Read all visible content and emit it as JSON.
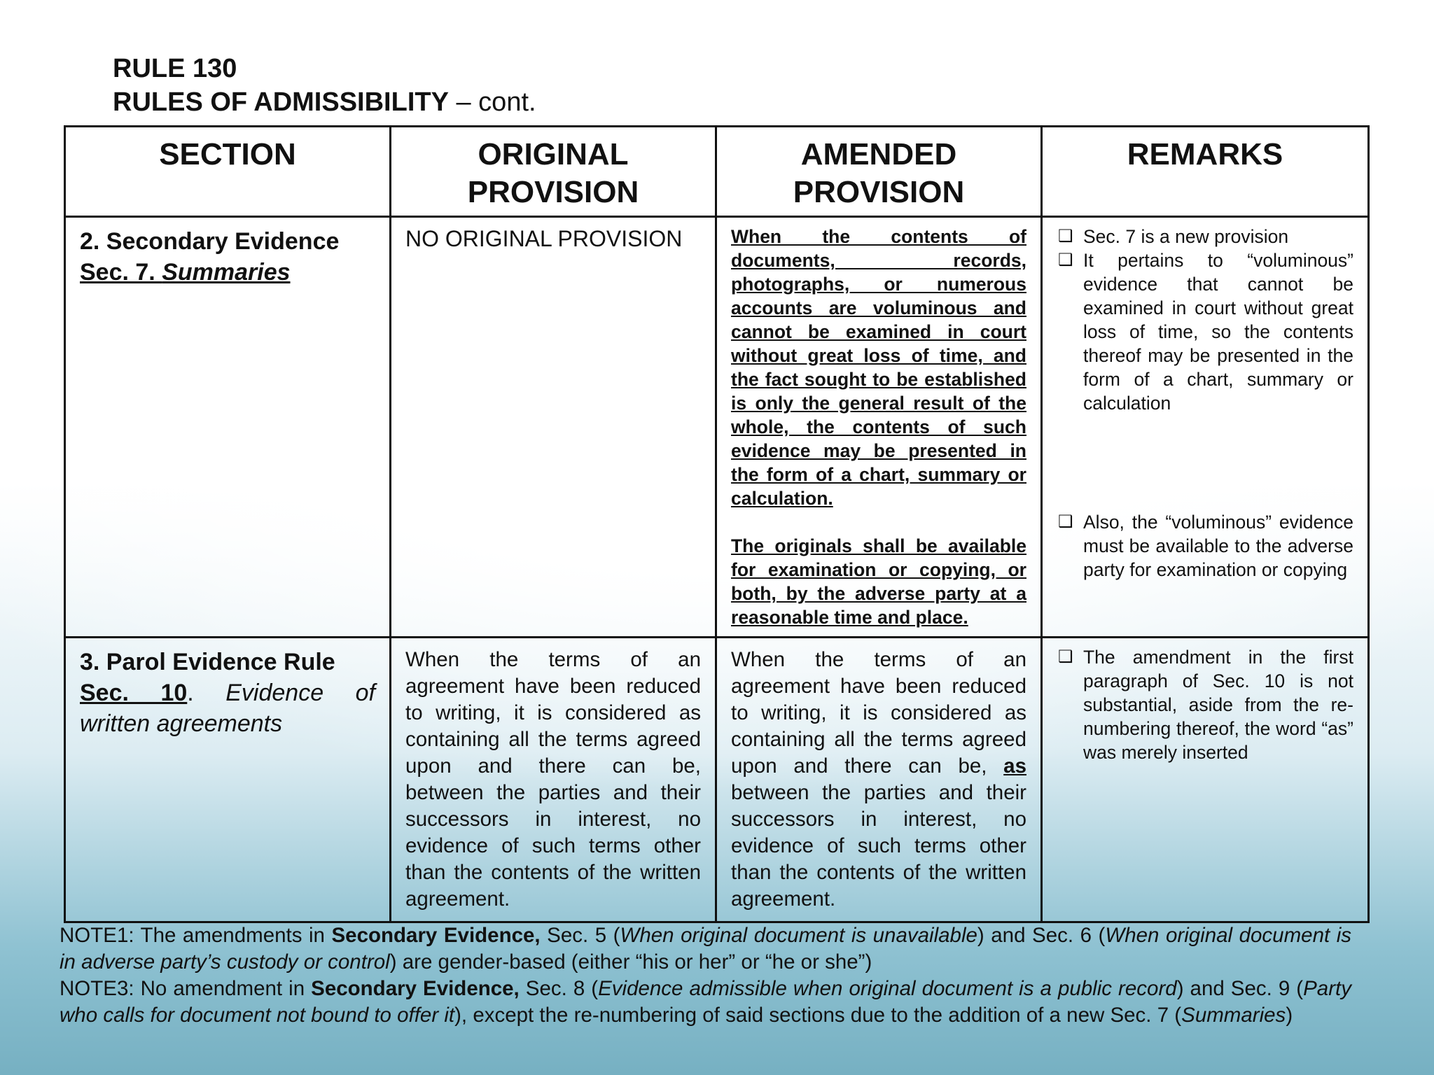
{
  "title": {
    "line1": "RULE 130",
    "line2": "RULES OF ADMISSIBILITY",
    "line2_suffix": " – cont."
  },
  "table": {
    "headers": [
      "SECTION",
      "ORIGINAL PROVISION",
      "AMENDED PROVISION",
      "REMARKS"
    ],
    "rows": [
      {
        "section": {
          "heading": "2. Secondary Evidence",
          "sec": "Sec. 7. ",
          "title": "Summaries"
        },
        "original": "NO ORIGINAL PROVISION",
        "amended": [
          "When the contents of documents, records, photographs, or numerous accounts are voluminous and cannot be examined in court without great loss of time, and the fact sought to be established is only the general result of the whole, the contents of such evidence may be presented in the form of a chart, summary or calculation.",
          "The originals shall be available for examination or copying, or both, by the adverse party at a reasonable time and place."
        ],
        "remarks": [
          "Sec. 7 is a new provision",
          "It pertains to “voluminous” evidence that cannot be examined in court without great loss of time, so the contents thereof may be presented in the form of a chart, summary or calculation",
          "Also, the “voluminous” evidence must be available to the adverse party for examination or copying"
        ]
      },
      {
        "section": {
          "heading": "3. Parol Evidence Rule",
          "sec": "Sec. 10",
          "sep": ". ",
          "title": "Evidence of written agreements"
        },
        "original": "When the terms of an agreement have been reduced to writing, it is considered as containing all the terms agreed upon and there can be, between the parties and their successors in interest, no evidence of such terms other than the contents of the written agreement.",
        "amended": {
          "before": "When the terms of an agreement have been reduced to writing, it is considered as containing all the terms agreed upon and there can be, ",
          "inserted": "as",
          "after": " between the parties and their successors in interest, no evidence of such terms other than the contents of the written agreement."
        },
        "remarks": [
          "The amendment in the first paragraph of Sec. 10 is not substantial, aside from the re-numbering thereof, the word “as” was merely inserted"
        ]
      }
    ]
  },
  "bullet_icon": "checkbox-square-icon",
  "notes": {
    "note1": [
      "NOTE1: The amendments in ",
      "Secondary Evidence,",
      " Sec. 5 (",
      "When original document is unavailable",
      ") and Sec. 6 (",
      "When original document is in adverse party’s custody or control",
      ") are gender-based (either “his or her” or “he or she”)"
    ],
    "note3": [
      "NOTE3: No amendment in ",
      "Secondary Evidence,",
      " Sec. 8 (",
      "Evidence admissible when original document is a public record",
      ") and Sec. 9 (",
      "Party who calls for document not bound to offer it",
      "), except the re-numbering of said sections due to the addition of a new Sec. 7 (",
      "Summaries",
      ")"
    ]
  }
}
